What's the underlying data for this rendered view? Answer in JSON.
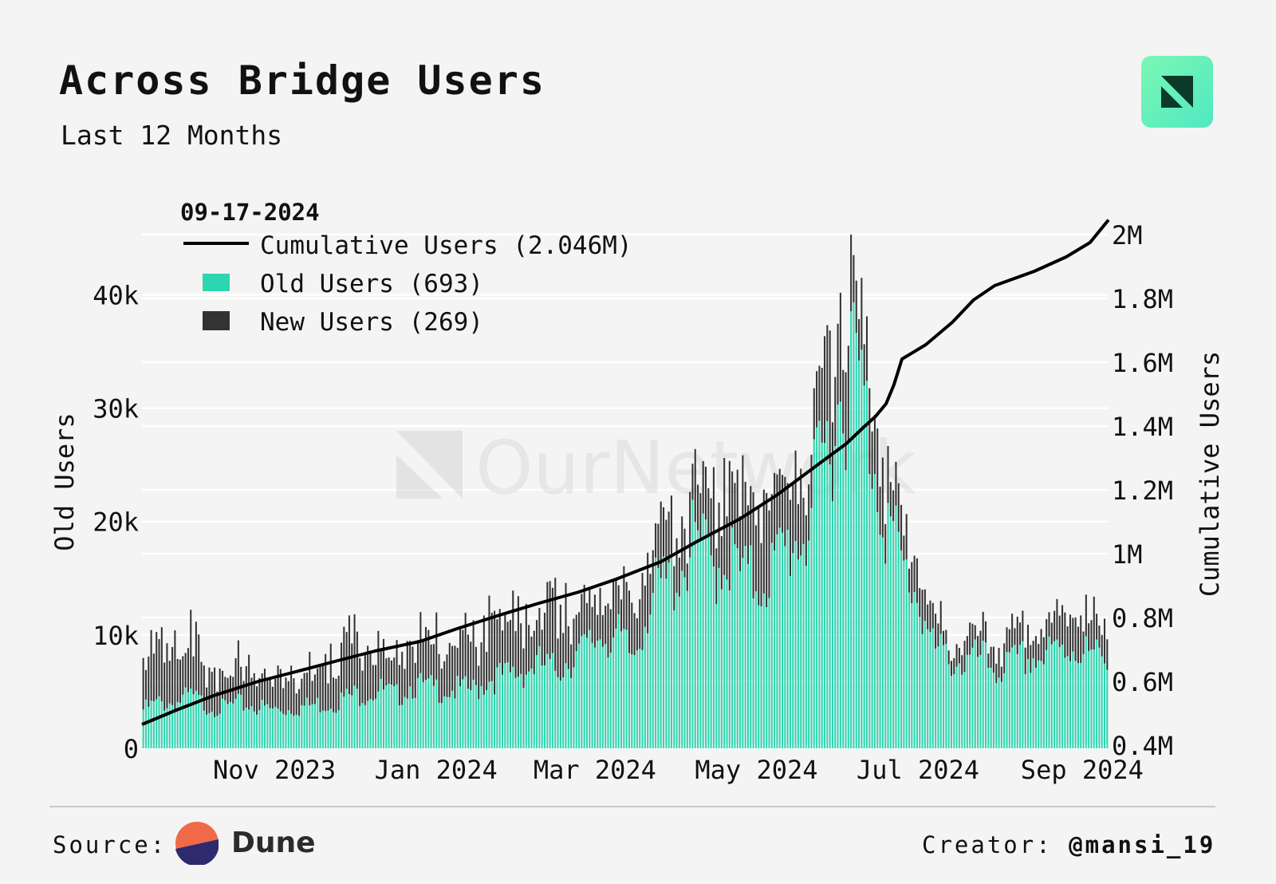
{
  "header": {
    "title": "Across Bridge Users",
    "subtitle": "Last 12 Months",
    "logo_icon": "ournetwork-logo-icon"
  },
  "watermark": "OurNetwork",
  "footer": {
    "source_label": "Source:",
    "source_name": "Dune",
    "creator_label": "Creator:",
    "creator_handle": "@mansi_19"
  },
  "colors": {
    "old_users": "#2ed6b0",
    "new_users": "#333333",
    "cumulative": "#000000",
    "background": "#f4f4f4",
    "grid": "#ffffff"
  },
  "chart_data": {
    "type": "bar",
    "stacked": true,
    "title": "Across Bridge Users",
    "subtitle": "Last 12 Months",
    "x_start_date": "2023-09-18",
    "x_end_date": "2024-09-17",
    "x_tick_labels": [
      "Nov 2023",
      "Jan 2024",
      "Mar 2024",
      "May 2024",
      "Jul 2024",
      "Sep 2024"
    ],
    "x_tick_dates": [
      "2023-11-01",
      "2024-01-01",
      "2024-03-01",
      "2024-05-01",
      "2024-07-01",
      "2024-09-01"
    ],
    "y_left": {
      "label": "Old Users",
      "range": [
        0,
        47000
      ],
      "ticks": [
        0,
        10000,
        20000,
        30000,
        40000
      ],
      "tick_labels": [
        "0",
        "10k",
        "20k",
        "30k",
        "40k"
      ]
    },
    "y_right": {
      "label": "Cumulative Users",
      "range": [
        0.39,
        2.06
      ],
      "unit": "M",
      "ticks": [
        0.4,
        0.6,
        0.8,
        1.0,
        1.2,
        1.4,
        1.6,
        1.8,
        2.0
      ],
      "tick_labels": [
        "0.4M",
        "0.6M",
        "0.8M",
        "1M",
        "1.2M",
        "1.4M",
        "1.6M",
        "1.8M",
        "2M"
      ]
    },
    "legend": {
      "date": "09-17-2024",
      "placement": "top-left",
      "entries": [
        {
          "label": "Cumulative Users (2.046M)",
          "kind": "line"
        },
        {
          "label": "Old Users (693)",
          "kind": "bar"
        },
        {
          "label": "New Users (269)",
          "kind": "bar"
        }
      ]
    },
    "grid": true,
    "series": [
      {
        "name": "Old Users",
        "axis": "left",
        "kind": "bar",
        "weekly_values": [
          3000,
          3500,
          3500,
          4000,
          3300,
          3100,
          3400,
          3300,
          3000,
          3000,
          3200,
          3400,
          3500,
          4000,
          4300,
          4500,
          4000,
          5000,
          4600,
          4600,
          4500,
          4500,
          5500,
          5500,
          6000,
          6500,
          6000,
          7000,
          7500,
          9000,
          8500,
          7000,
          11500,
          12500,
          14000,
          16000,
          14000,
          15000,
          13000,
          13000,
          14000,
          16000,
          17000,
          22000,
          27000,
          30000,
          24000,
          18000,
          14000,
          12000,
          7500,
          7000,
          6500,
          7000,
          6000,
          6500,
          7000,
          7000,
          7500,
          8000,
          7000,
          6900
        ],
        "last_value": 693
      },
      {
        "name": "New Users",
        "axis": "left",
        "kind": "bar",
        "weekly_values": [
          3500,
          4000,
          4500,
          4200,
          2800,
          2700,
          3100,
          3500,
          2500,
          2500,
          2700,
          3000,
          3500,
          4500,
          3800,
          3200,
          2900,
          3500,
          3400,
          3600,
          3500,
          3700,
          5000,
          5000,
          4000,
          3500,
          5000,
          4000,
          2500,
          3000,
          3500,
          3500,
          4500,
          4000,
          3000,
          4000,
          6000,
          7000,
          6000,
          6000,
          6000,
          5500,
          5500,
          6500,
          7500,
          5000,
          5000,
          4000,
          2500,
          2500,
          2000,
          1500,
          1800,
          1500,
          1500,
          2000,
          2000,
          2000,
          2500,
          2500,
          2800,
          2500
        ],
        "last_value": 269
      },
      {
        "name": "Cumulative Users",
        "axis": "right",
        "kind": "line",
        "points": [
          [
            "2023-09-18",
            0.465
          ],
          [
            "2023-10-01",
            0.51
          ],
          [
            "2023-10-15",
            0.555
          ],
          [
            "2023-11-01",
            0.6
          ],
          [
            "2023-11-15",
            0.63
          ],
          [
            "2023-12-01",
            0.665
          ],
          [
            "2023-12-15",
            0.695
          ],
          [
            "2024-01-01",
            0.725
          ],
          [
            "2024-01-15",
            0.765
          ],
          [
            "2024-02-01",
            0.81
          ],
          [
            "2024-02-15",
            0.845
          ],
          [
            "2024-03-01",
            0.88
          ],
          [
            "2024-03-15",
            0.92
          ],
          [
            "2024-04-01",
            0.975
          ],
          [
            "2024-04-15",
            1.04
          ],
          [
            "2024-05-01",
            1.11
          ],
          [
            "2024-05-15",
            1.185
          ],
          [
            "2024-06-01",
            1.29
          ],
          [
            "2024-06-10",
            1.345
          ],
          [
            "2024-06-17",
            1.4
          ],
          [
            "2024-06-21",
            1.43
          ],
          [
            "2024-06-25",
            1.47
          ],
          [
            "2024-06-28",
            1.53
          ],
          [
            "2024-07-01",
            1.61
          ],
          [
            "2024-07-10",
            1.655
          ],
          [
            "2024-07-20",
            1.725
          ],
          [
            "2024-07-28",
            1.795
          ],
          [
            "2024-08-05",
            1.84
          ],
          [
            "2024-08-20",
            1.885
          ],
          [
            "2024-09-01",
            1.93
          ],
          [
            "2024-09-10",
            1.975
          ],
          [
            "2024-09-17",
            2.046
          ]
        ],
        "last_value": 2.046
      }
    ]
  }
}
